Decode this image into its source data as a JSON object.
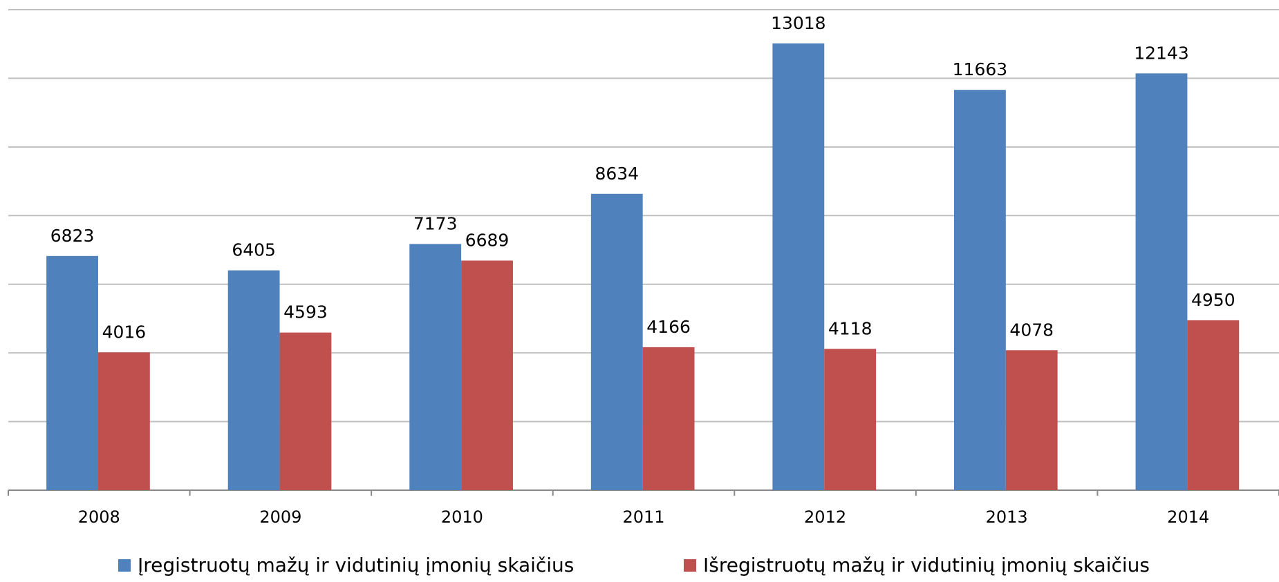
{
  "chart_data": {
    "type": "bar",
    "categories": [
      "2008",
      "2009",
      "2010",
      "2011",
      "2012",
      "2013",
      "2014"
    ],
    "series": [
      {
        "name": "Įregistruotų mažų ir vidutinių įmonių skaičius",
        "color": "#4f81bd",
        "values": [
          6823,
          6405,
          7173,
          8634,
          13018,
          11663,
          12143
        ]
      },
      {
        "name": "Išregistruotų mažų ir vidutinių įmonių skaičius",
        "color": "#c0504d",
        "values": [
          4016,
          4593,
          6689,
          4166,
          4118,
          4078,
          4950
        ]
      }
    ],
    "ylim": [
      0,
      14000
    ],
    "yticks": [
      0,
      2000,
      4000,
      6000,
      8000,
      10000,
      12000,
      14000
    ],
    "grid": true,
    "legend": "bottom"
  }
}
